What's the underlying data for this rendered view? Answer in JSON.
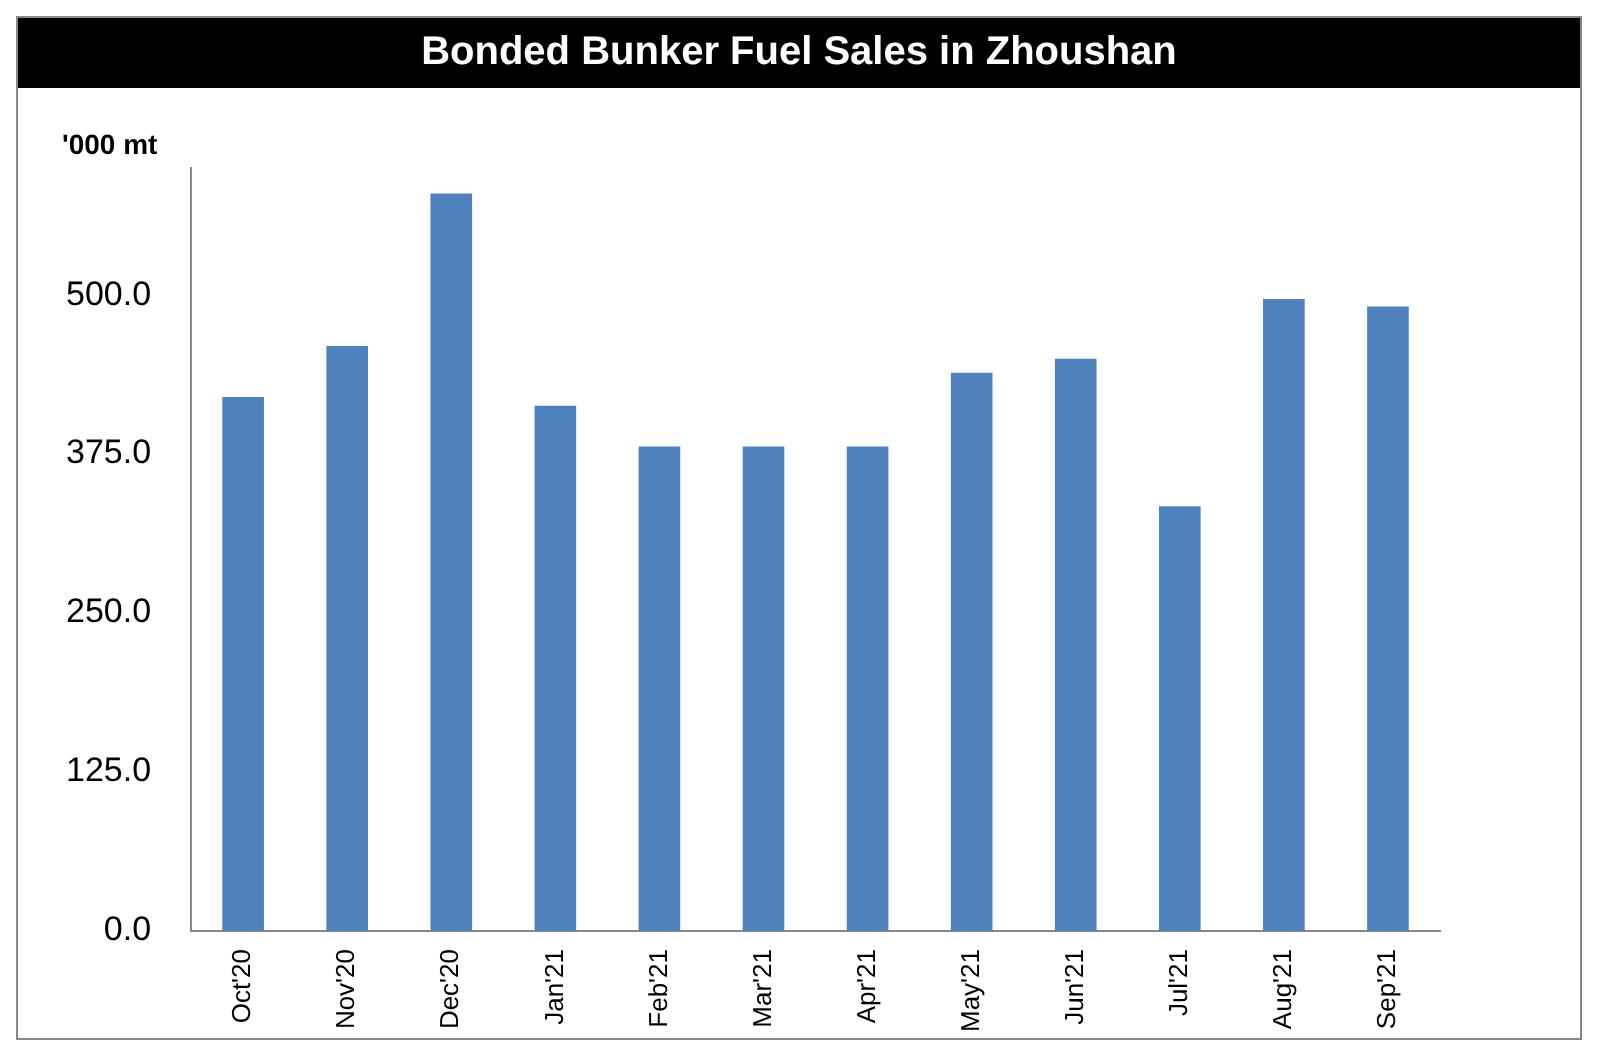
{
  "chart_data": {
    "type": "bar",
    "title": "Bonded Bunker Fuel Sales in Zhoushan",
    "ylabel": "'000 mt",
    "categories": [
      "Oct'20",
      "Nov'20",
      "Dec'20",
      "Jan'21",
      "Feb'21",
      "Mar'21",
      "Apr'21",
      "May'21",
      "Jun'21",
      "Jul'21",
      "Aug'21",
      "Sep'21"
    ],
    "values": [
      420,
      460,
      580,
      413,
      381,
      381,
      381,
      439,
      450,
      334,
      497,
      491
    ],
    "color": "#4f81bd",
    "ylim": [
      0,
      600
    ],
    "yticks": [
      {
        "value": 0,
        "label": "0.0"
      },
      {
        "value": 125,
        "label": "125.0"
      },
      {
        "value": 250,
        "label": "250.0"
      },
      {
        "value": 375,
        "label": "375.0"
      },
      {
        "value": 500,
        "label": "500.0"
      }
    ],
    "grid": false,
    "legend": false
  }
}
